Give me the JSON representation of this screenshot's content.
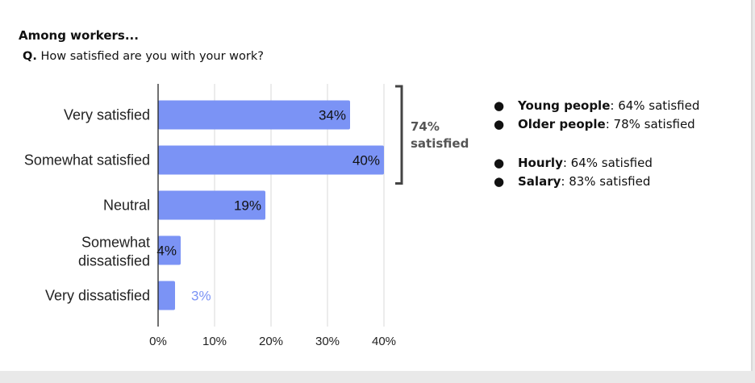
{
  "header": {
    "title": "Among workers...",
    "question_prefix": "Q.",
    "question_text": " How satisfied are you with your work?"
  },
  "chart_data": {
    "type": "bar",
    "orientation": "horizontal",
    "categories": [
      "Very satisfied",
      "Somewhat satisfied",
      "Neutral",
      "Somewhat dissatisfied",
      "Very dissatisfied"
    ],
    "values": [
      34,
      40,
      19,
      4,
      3
    ],
    "data_labels": [
      "34%",
      "40%",
      "19%",
      "4%",
      "3%"
    ],
    "xlim": [
      0,
      40
    ],
    "x_ticks": [
      "0%",
      "10%",
      "20%",
      "30%",
      "40%"
    ],
    "grid": "vertical",
    "bar_color": "#7b93f5",
    "annotation": {
      "bracket_covers": [
        "Very satisfied",
        "Somewhat satisfied"
      ],
      "line1": "74%",
      "line2": "satisfied"
    }
  },
  "notes": {
    "age": [
      {
        "key": "Young people",
        "rest": ": 64% satisfied"
      },
      {
        "key": "Older people",
        "rest": ": 78% satisfied"
      }
    ],
    "pay": [
      {
        "key": "Hourly",
        "rest": ": 64% satisfied"
      },
      {
        "key": "Salary",
        "rest": ": 83% satisfied"
      }
    ],
    "bullet": "●"
  }
}
